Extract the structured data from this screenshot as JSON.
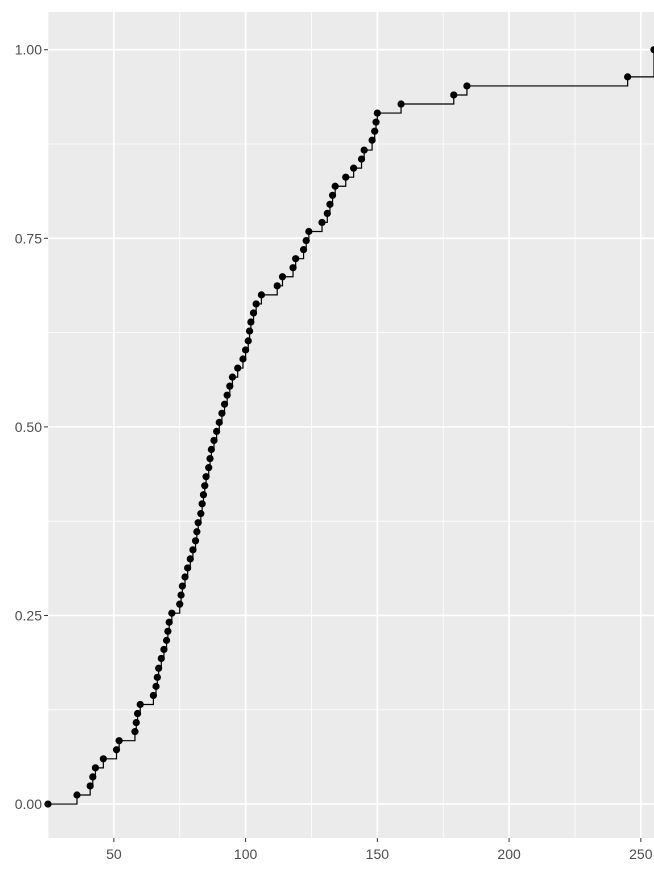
{
  "chart_data": {
    "type": "line",
    "subtype": "step-ecdf",
    "title": "",
    "xlabel": "",
    "ylabel": "",
    "xlim": [
      25,
      255
    ],
    "ylim": [
      -0.045,
      1.05
    ],
    "grid": true,
    "legend": "none",
    "x_ticks": [
      50,
      100,
      150,
      200,
      250
    ],
    "x_tick_labels": [
      "50",
      "100",
      "150",
      "200",
      "250"
    ],
    "y_ticks": [
      0,
      0.25,
      0.5,
      0.75,
      1
    ],
    "y_tick_labels": [
      "0.00",
      "0.25",
      "0.50",
      "0.75",
      "1.00"
    ],
    "colors": {
      "panel": "#ebebeb",
      "grid": "#ffffff",
      "line": "#000000",
      "points": "#000000",
      "tick_text": "#4d4d4d"
    },
    "series": [
      {
        "x": [
          25,
          36,
          41,
          42,
          43,
          46,
          51,
          52,
          58,
          58.5,
          59,
          60,
          65,
          66,
          66.5,
          67,
          68,
          69,
          70,
          70.5,
          71,
          72,
          75,
          75.5,
          76,
          77,
          78,
          79,
          80,
          81,
          81.5,
          82,
          83,
          83.5,
          84,
          84.5,
          85,
          86,
          86.5,
          87,
          88,
          89,
          90,
          91,
          92,
          93,
          94,
          95,
          97,
          99,
          100,
          101,
          101.5,
          102,
          103,
          104,
          106,
          112,
          114,
          118,
          119,
          122,
          123,
          124,
          129,
          131,
          132,
          133,
          134,
          138,
          141,
          144,
          145,
          148,
          149,
          149.5,
          150,
          159,
          179,
          184,
          245,
          255
        ],
        "y": [
          0,
          0.012,
          0.024,
          0.036,
          0.048,
          0.06,
          0.072,
          0.084,
          0.096,
          0.108,
          0.12,
          0.132,
          0.144,
          0.156,
          0.168,
          0.18,
          0.193,
          0.205,
          0.217,
          0.229,
          0.241,
          0.253,
          0.265,
          0.277,
          0.289,
          0.301,
          0.313,
          0.325,
          0.337,
          0.349,
          0.361,
          0.373,
          0.385,
          0.398,
          0.41,
          0.422,
          0.434,
          0.446,
          0.458,
          0.47,
          0.482,
          0.494,
          0.506,
          0.518,
          0.53,
          0.542,
          0.554,
          0.566,
          0.578,
          0.59,
          0.602,
          0.614,
          0.627,
          0.639,
          0.651,
          0.663,
          0.675,
          0.687,
          0.699,
          0.711,
          0.723,
          0.735,
          0.747,
          0.759,
          0.771,
          0.783,
          0.795,
          0.807,
          0.819,
          0.831,
          0.843,
          0.855,
          0.867,
          0.88,
          0.892,
          0.904,
          0.916,
          0.928,
          0.94,
          0.952,
          0.964,
          1.0
        ]
      }
    ]
  }
}
